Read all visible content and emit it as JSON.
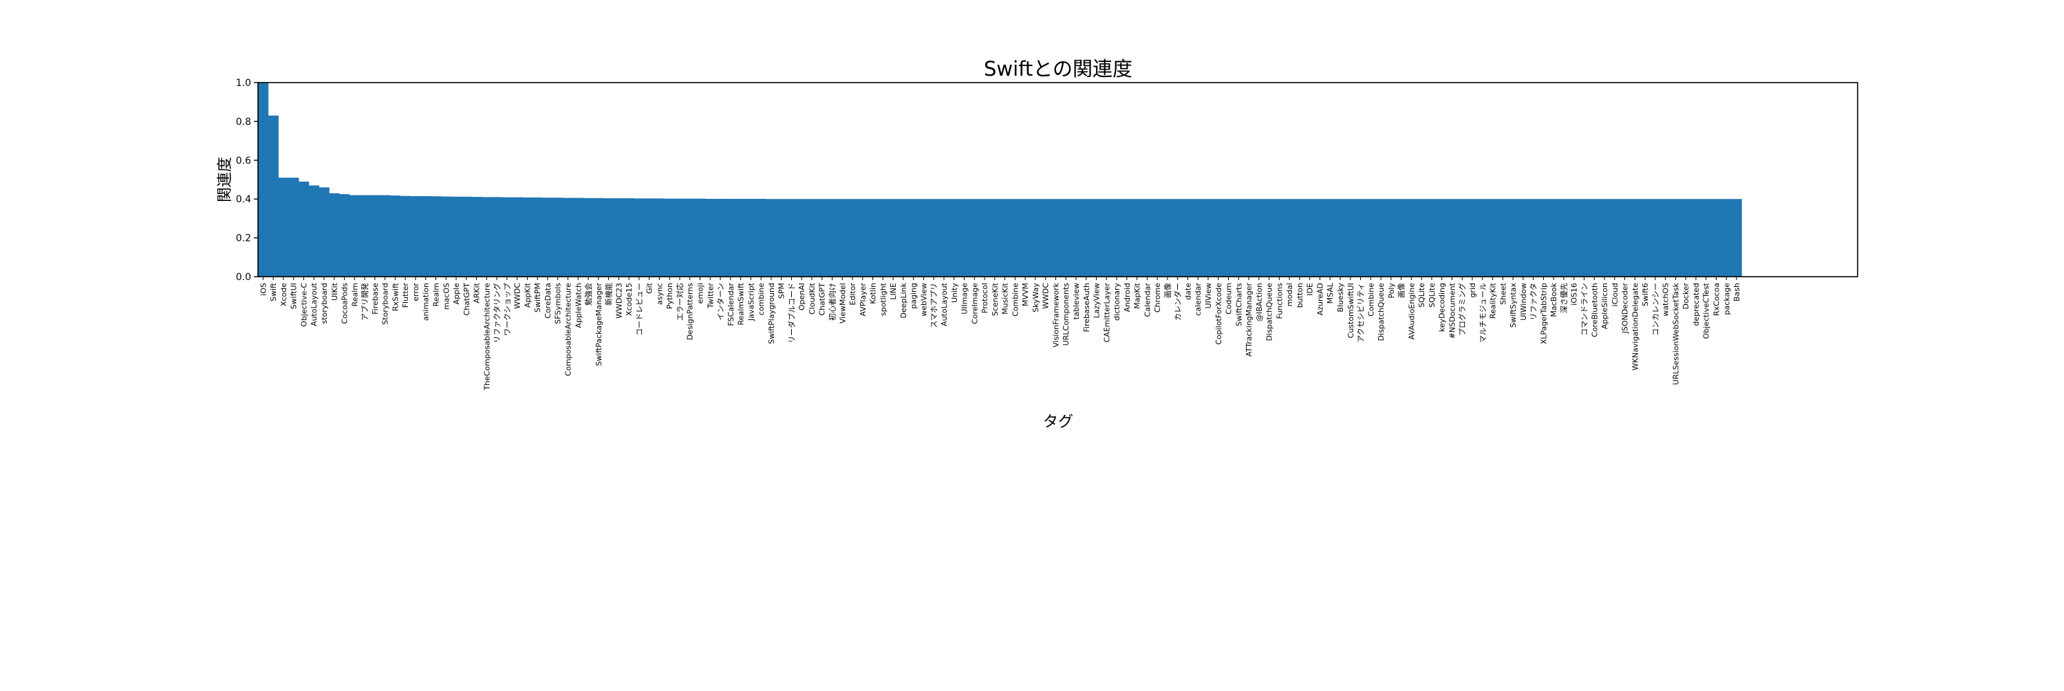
{
  "chart_data": {
    "type": "bar",
    "title": "Swiftとの関連度",
    "xlabel": "タグ",
    "ylabel": "関連度",
    "ylim": [
      0.0,
      1.0
    ],
    "yticks": [
      "0.0",
      "0.2",
      "0.4",
      "0.6",
      "0.8",
      "1.0"
    ],
    "grid": false,
    "legend": "none",
    "bar_color": "#1f77b4",
    "categories": [
      "iOS",
      "Swift",
      "Xcode",
      "SwiftUI",
      "Objective-C",
      "AutoLayout",
      "storyboard",
      "UIKit",
      "CocoaPods",
      "Realm",
      "アプリ開発",
      "Firebase",
      "Storyboard",
      "RxSwift",
      "Flutter",
      "error",
      "animation",
      "Realm",
      "macOS",
      "Apple",
      "ChatGPT",
      "ARKit",
      "TheComposableArchitecture",
      "リファクタリング",
      "ワークショップ",
      "WWDC",
      "AppKit",
      "SwiftPM",
      "CoreData",
      "SFSymbols",
      "ComposableArchitecture",
      "AppleWatch",
      "勉強会",
      "SwiftPackageManager",
      "新機能",
      "WWDC23",
      "Xcode15",
      "コードレビュー",
      "Git",
      "async",
      "Python",
      "エラー対応",
      "DesignPatterns",
      "emoji",
      "Twitter",
      "インターン",
      "FSCalendar",
      "RealmSwift",
      "JavaScript",
      "combine",
      "SwiftPlayground",
      "SPM",
      "リーダブルコード",
      "OpenAI",
      "CloudKit",
      "ChatGPT",
      "初心者向け",
      "ViewModel",
      "Editor",
      "AVPlayer",
      "Kotlin",
      "spotlight",
      "LINE",
      "DeepLink",
      "paging",
      "webView",
      "スマホアプリ",
      "AutoLayout",
      "Unity",
      "UIImage",
      "CoreImage",
      "Protocol",
      "SceneKit",
      "MusicKit",
      "Combine",
      "MVVM",
      "SkyWay",
      "WWDC",
      "VisionFramework",
      "URLComponents",
      "tableview",
      "FirebaseAuth",
      "LazyView",
      "CAEmitterLayer",
      "dictionary",
      "Android",
      "MapKit",
      "Calendar",
      "Chrome",
      "画像",
      "カレンダー",
      "date",
      "calendar",
      "UIView",
      "CopilotForXcode",
      "Codeum",
      "SwiftCharts",
      "ATTrackingManager",
      "@IBAction",
      "DispatchQueue",
      "Functions",
      "modal",
      "button",
      "IDE",
      "AzureAD",
      "MSAL",
      "Bluesky",
      "CustomSwiftUI",
      "アクセシビリティ",
      "Combine",
      "DispatchQueue",
      "Poly",
      "画像",
      "AVAudioEngine",
      "SQLite",
      "SQLite",
      "keyDecoding",
      "#NSDocument",
      "プログラミング",
      "grid",
      "マルチモジュール",
      "RealityKit",
      "Sheet",
      "SwiftSyntax",
      "UIWindow",
      "リファクタ",
      "XLPagerTabStrip",
      "MacBook",
      "深さ優先",
      "iOS16",
      "コマンドライン",
      "CoreBluetooth",
      "AppleSilicon",
      "iCloud",
      "JSONDecoder",
      "WKNavigationDelegate",
      "Swift6",
      "コンカレンシー",
      "watchOS",
      "URLSessionWebSocketTask",
      "Docker",
      "deprecated",
      "ObjectiveCTest",
      "RxCocoa",
      "package",
      "Bash"
    ],
    "values": [
      1.0,
      0.83,
      0.51,
      0.51,
      0.49,
      0.47,
      0.46,
      0.43,
      0.425,
      0.42,
      0.42,
      0.42,
      0.42,
      0.418,
      0.416,
      0.415,
      0.415,
      0.414,
      0.413,
      0.412,
      0.412,
      0.411,
      0.41,
      0.41,
      0.409,
      0.409,
      0.408,
      0.408,
      0.407,
      0.407,
      0.406,
      0.406,
      0.405,
      0.405,
      0.404,
      0.404,
      0.404,
      0.403,
      0.403,
      0.403,
      0.402,
      0.402,
      0.402,
      0.402,
      0.401,
      0.401,
      0.401,
      0.401,
      0.401,
      0.401,
      0.4,
      0.4,
      0.4,
      0.4,
      0.4,
      0.4,
      0.4,
      0.4,
      0.4,
      0.4,
      0.4,
      0.4,
      0.4,
      0.4,
      0.4,
      0.4,
      0.4,
      0.4,
      0.4,
      0.4,
      0.4,
      0.4,
      0.4,
      0.4,
      0.4,
      0.4,
      0.4,
      0.4,
      0.4,
      0.4,
      0.4,
      0.4,
      0.4,
      0.4,
      0.4,
      0.4,
      0.4,
      0.4,
      0.4,
      0.4,
      0.4,
      0.4,
      0.4,
      0.4,
      0.4,
      0.4,
      0.4,
      0.4,
      0.4,
      0.4,
      0.4,
      0.4,
      0.4,
      0.4,
      0.4,
      0.4,
      0.4,
      0.4,
      0.4,
      0.4,
      0.4,
      0.4,
      0.4,
      0.4,
      0.4,
      0.4,
      0.4,
      0.4,
      0.4,
      0.4,
      0.4,
      0.4,
      0.4,
      0.4,
      0.4,
      0.4,
      0.4,
      0.4,
      0.4,
      0.4,
      0.4,
      0.4,
      0.4,
      0.4,
      0.4,
      0.4,
      0.4,
      0.4,
      0.4,
      0.4,
      0.4,
      0.4,
      0.4,
      0.4,
      0.4,
      0.4
    ]
  }
}
